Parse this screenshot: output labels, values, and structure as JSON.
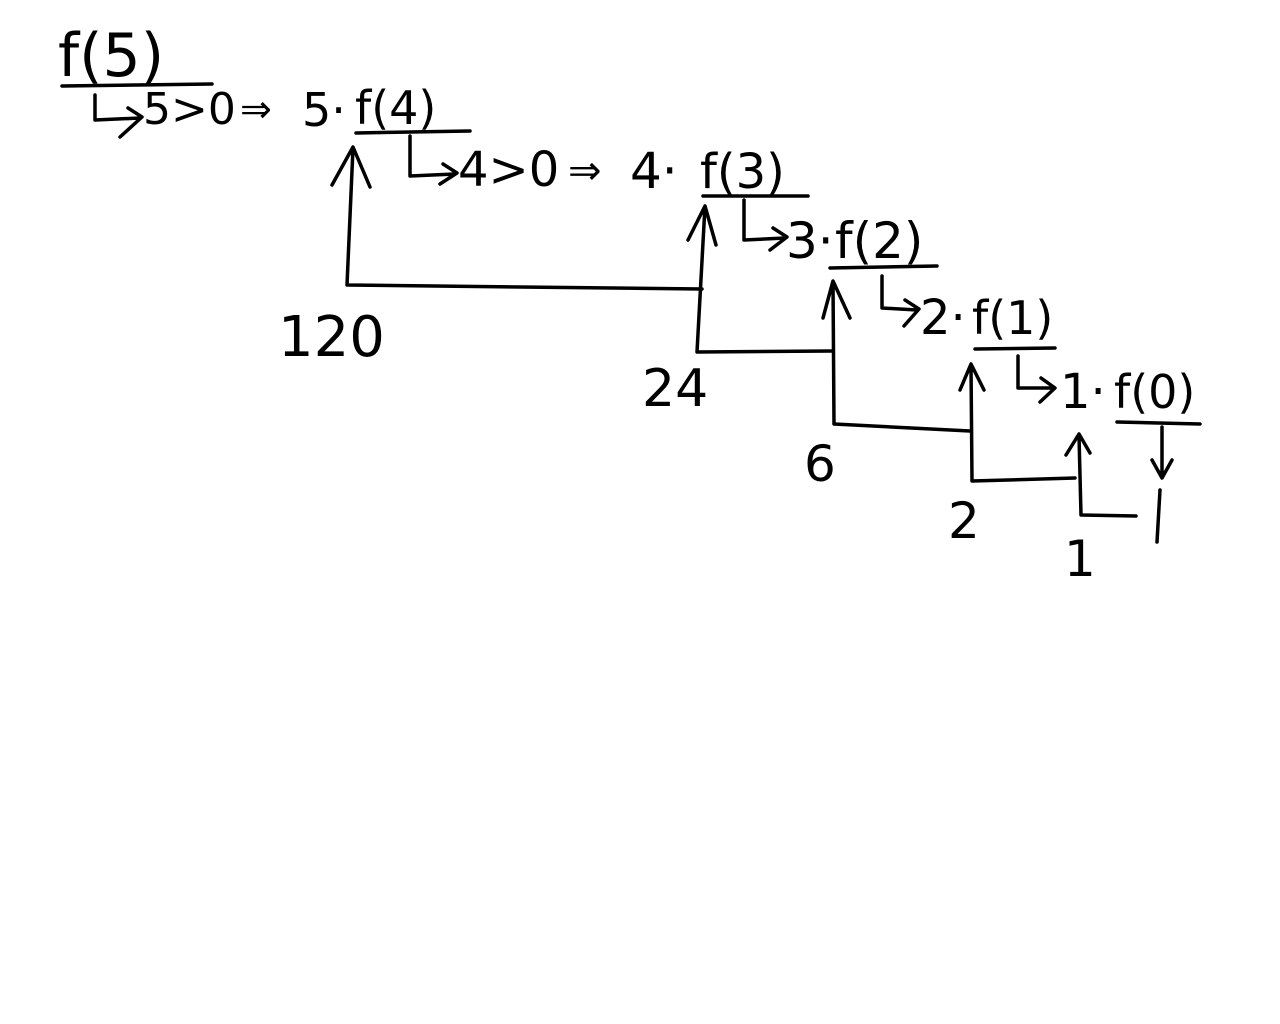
{
  "diagram": {
    "colors": {
      "ink": "#000000",
      "background": "#ffffff"
    },
    "call": "f(5)",
    "steps": [
      {
        "check": "5>0",
        "implies": "⇒",
        "expr_prefix": "5·",
        "call": "f(4)"
      },
      {
        "check": "4>0",
        "implies": "⇒",
        "expr_prefix": "4·",
        "call": "f(3)"
      },
      {
        "expr_prefix": "3·",
        "call": "f(2)"
      },
      {
        "expr_prefix": "2·",
        "call": "f(1)"
      },
      {
        "expr_prefix": "1·",
        "call": "f(0)"
      }
    ],
    "base_value": "1",
    "results": [
      "120",
      "24",
      "6",
      "2",
      "1"
    ]
  }
}
